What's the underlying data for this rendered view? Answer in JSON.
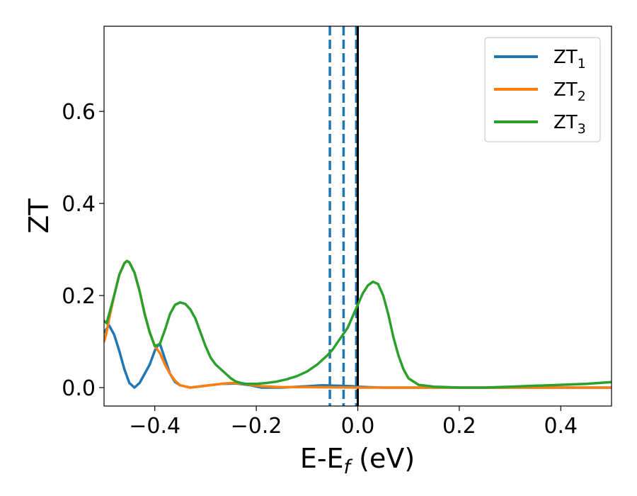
{
  "chart_data": {
    "type": "line",
    "xlabel": "E-E",
    "xlabel_sub": "f",
    "xlabel_unit": "(eV)",
    "ylabel": "ZT",
    "xlim": [
      -0.5,
      0.5
    ],
    "ylim": [
      -0.04,
      0.785
    ],
    "x_ticks": [
      -0.4,
      -0.2,
      0.0,
      0.2,
      0.4
    ],
    "x_tick_labels": [
      "−0.4",
      "−0.2",
      "0.0",
      "0.2",
      "0.4"
    ],
    "y_ticks": [
      0.0,
      0.2,
      0.4,
      0.6
    ],
    "y_tick_labels": [
      "0.0",
      "0.2",
      "0.4",
      "0.6"
    ],
    "grid": false,
    "legend_position": "top-right",
    "series": [
      {
        "name": "ZT",
        "name_sub": "1",
        "color": "#1f77b4",
        "points": [
          [
            -0.5,
            0.12
          ],
          [
            -0.49,
            0.135
          ],
          [
            -0.48,
            0.115
          ],
          [
            -0.47,
            0.08
          ],
          [
            -0.46,
            0.04
          ],
          [
            -0.45,
            0.01
          ],
          [
            -0.44,
            0.0
          ],
          [
            -0.43,
            0.01
          ],
          [
            -0.42,
            0.03
          ],
          [
            -0.41,
            0.05
          ],
          [
            -0.4,
            0.08
          ],
          [
            -0.395,
            0.09
          ],
          [
            -0.39,
            0.095
          ],
          [
            -0.37,
            0.03
          ],
          [
            -0.36,
            0.012
          ],
          [
            -0.35,
            0.005
          ],
          [
            -0.33,
            0.0
          ],
          [
            -0.3,
            0.004
          ],
          [
            -0.27,
            0.008
          ],
          [
            -0.24,
            0.009
          ],
          [
            -0.21,
            0.005
          ],
          [
            -0.19,
            0.0
          ],
          [
            -0.15,
            0.0
          ],
          [
            -0.1,
            0.003
          ],
          [
            -0.07,
            0.005
          ],
          [
            -0.04,
            0.004
          ],
          [
            -0.01,
            0.003
          ],
          [
            0.0,
            0.002
          ],
          [
            0.02,
            0.001
          ],
          [
            0.05,
            0.0
          ],
          [
            0.1,
            0.0
          ],
          [
            0.2,
            0.0
          ],
          [
            0.3,
            0.0
          ],
          [
            0.4,
            0.0
          ],
          [
            0.5,
            0.0
          ]
        ]
      },
      {
        "name": "ZT",
        "name_sub": "2",
        "color": "#ff7f0e",
        "points": [
          [
            -0.5,
            0.1
          ],
          [
            -0.495,
            0.12
          ],
          [
            -0.49,
            0.15
          ],
          [
            -0.48,
            0.2
          ],
          [
            -0.47,
            0.245
          ],
          [
            -0.46,
            0.27
          ],
          [
            -0.455,
            0.275
          ],
          [
            -0.45,
            0.272
          ],
          [
            -0.44,
            0.25
          ],
          [
            -0.43,
            0.21
          ],
          [
            -0.42,
            0.16
          ],
          [
            -0.41,
            0.12
          ],
          [
            -0.4,
            0.09
          ],
          [
            -0.39,
            0.075
          ],
          [
            -0.38,
            0.05
          ],
          [
            -0.37,
            0.03
          ],
          [
            -0.36,
            0.015
          ],
          [
            -0.35,
            0.005
          ],
          [
            -0.33,
            0.0
          ],
          [
            -0.3,
            0.004
          ],
          [
            -0.27,
            0.008
          ],
          [
            -0.25,
            0.01
          ],
          [
            -0.23,
            0.009
          ],
          [
            -0.21,
            0.006
          ],
          [
            -0.19,
            0.003
          ],
          [
            -0.15,
            0.001
          ],
          [
            -0.1,
            0.001
          ],
          [
            0.0,
            0.0
          ],
          [
            0.1,
            0.0
          ],
          [
            0.2,
            0.0
          ],
          [
            0.3,
            0.0
          ],
          [
            0.4,
            0.0
          ],
          [
            0.5,
            0.0
          ]
        ]
      },
      {
        "name": "ZT",
        "name_sub": "3",
        "color": "#2ca02c",
        "points": [
          [
            -0.5,
            0.145
          ],
          [
            -0.495,
            0.14
          ],
          [
            -0.49,
            0.16
          ],
          [
            -0.48,
            0.2
          ],
          [
            -0.47,
            0.245
          ],
          [
            -0.46,
            0.27
          ],
          [
            -0.455,
            0.275
          ],
          [
            -0.45,
            0.272
          ],
          [
            -0.44,
            0.25
          ],
          [
            -0.43,
            0.21
          ],
          [
            -0.42,
            0.16
          ],
          [
            -0.41,
            0.12
          ],
          [
            -0.4,
            0.09
          ],
          [
            -0.39,
            0.095
          ],
          [
            -0.38,
            0.125
          ],
          [
            -0.37,
            0.16
          ],
          [
            -0.36,
            0.18
          ],
          [
            -0.35,
            0.185
          ],
          [
            -0.34,
            0.182
          ],
          [
            -0.33,
            0.17
          ],
          [
            -0.32,
            0.15
          ],
          [
            -0.31,
            0.12
          ],
          [
            -0.3,
            0.09
          ],
          [
            -0.29,
            0.065
          ],
          [
            -0.28,
            0.05
          ],
          [
            -0.27,
            0.04
          ],
          [
            -0.26,
            0.03
          ],
          [
            -0.25,
            0.02
          ],
          [
            -0.24,
            0.013
          ],
          [
            -0.23,
            0.01
          ],
          [
            -0.22,
            0.008
          ],
          [
            -0.2,
            0.008
          ],
          [
            -0.18,
            0.01
          ],
          [
            -0.16,
            0.013
          ],
          [
            -0.14,
            0.018
          ],
          [
            -0.12,
            0.025
          ],
          [
            -0.1,
            0.035
          ],
          [
            -0.08,
            0.05
          ],
          [
            -0.06,
            0.07
          ],
          [
            -0.05,
            0.082
          ],
          [
            -0.04,
            0.098
          ],
          [
            -0.02,
            0.13
          ],
          [
            0.0,
            0.18
          ],
          [
            0.01,
            0.205
          ],
          [
            0.02,
            0.222
          ],
          [
            0.03,
            0.23
          ],
          [
            0.04,
            0.225
          ],
          [
            0.05,
            0.2
          ],
          [
            0.06,
            0.16
          ],
          [
            0.07,
            0.11
          ],
          [
            0.08,
            0.07
          ],
          [
            0.09,
            0.04
          ],
          [
            0.1,
            0.02
          ],
          [
            0.12,
            0.006
          ],
          [
            0.15,
            0.002
          ],
          [
            0.2,
            0.0
          ],
          [
            0.25,
            0.0
          ],
          [
            0.3,
            0.002
          ],
          [
            0.35,
            0.004
          ],
          [
            0.4,
            0.006
          ],
          [
            0.45,
            0.008
          ],
          [
            0.5,
            0.012
          ]
        ]
      }
    ],
    "vlines": [
      {
        "x": -0.055,
        "color": "#1f77b4",
        "style": "dashed"
      },
      {
        "x": -0.028,
        "color": "#1f77b4",
        "style": "dashed"
      },
      {
        "x": -0.003,
        "color": "#1f77b4",
        "style": "dashed"
      },
      {
        "x": 0.0,
        "color": "#000000",
        "style": "solid"
      }
    ]
  }
}
